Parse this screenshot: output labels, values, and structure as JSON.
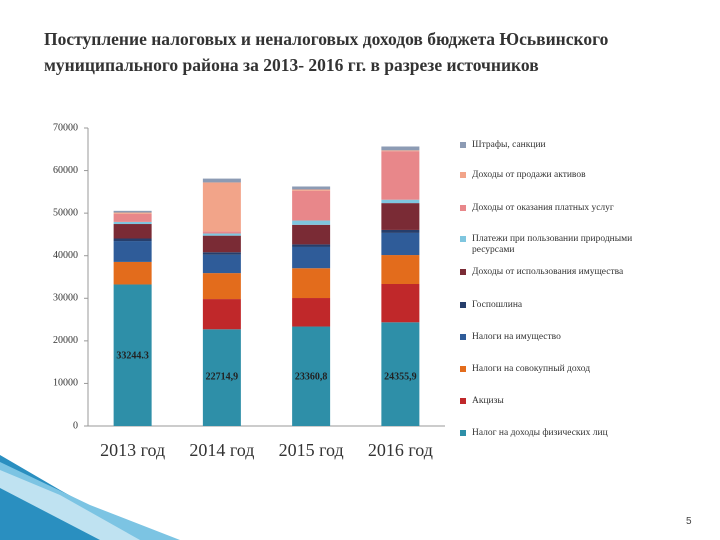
{
  "chart_data": {
    "type": "stacked_bar",
    "title": "Поступление налоговых и неналоговых доходов бюджета Юсьвинского муниципального района  за 2013- 2016 гг. в разрезе источников",
    "categories": [
      "2013 год",
      "2014 год",
      "2015 год",
      "2016 год"
    ],
    "ylim": [
      0,
      70000
    ],
    "yticks": [
      0,
      10000,
      20000,
      30000,
      40000,
      50000,
      60000,
      70000
    ],
    "grid": false,
    "series": [
      {
        "name": "Налог на доходы физических лиц",
        "color": "#2e8fa8",
        "values": [
          33244.3,
          22714.9,
          23360.8,
          24355.9
        ],
        "value_labels": [
          "33244.3",
          "22714,9",
          "23360,8",
          "24355,9"
        ]
      },
      {
        "name": "Акцизы",
        "color": "#c0282a",
        "values": [
          0,
          7100,
          6700,
          9000
        ]
      },
      {
        "name": "Налоги на совокупный доход",
        "color": "#e36c1c",
        "values": [
          5300,
          6100,
          7000,
          6800
        ]
      },
      {
        "name": "Налоги на имущество",
        "color": "#2f5c99",
        "values": [
          4900,
          4300,
          5000,
          5200
        ]
      },
      {
        "name": "Госпошлина",
        "color": "#263e6b",
        "values": [
          600,
          600,
          600,
          700
        ]
      },
      {
        "name": "Доходы от использования имущества",
        "color": "#7a2b35",
        "values": [
          3400,
          3900,
          4600,
          6300
        ]
      },
      {
        "name": "Платежи при пользовании природными ресурсами",
        "color": "#7fc6df",
        "values": [
          500,
          500,
          1000,
          800
        ]
      },
      {
        "name": "Доходы от оказания платных услуг",
        "color": "#e8878a",
        "values": [
          1900,
          500,
          7000,
          11400
        ]
      },
      {
        "name": "Доходы от продажи активов",
        "color": "#f2a489",
        "values": [
          300,
          11500,
          300,
          200
        ]
      },
      {
        "name": "Штрафы, санкции",
        "color": "#8c9bb4",
        "values": [
          400,
          900,
          700,
          900
        ]
      }
    ]
  },
  "page_number": "5"
}
